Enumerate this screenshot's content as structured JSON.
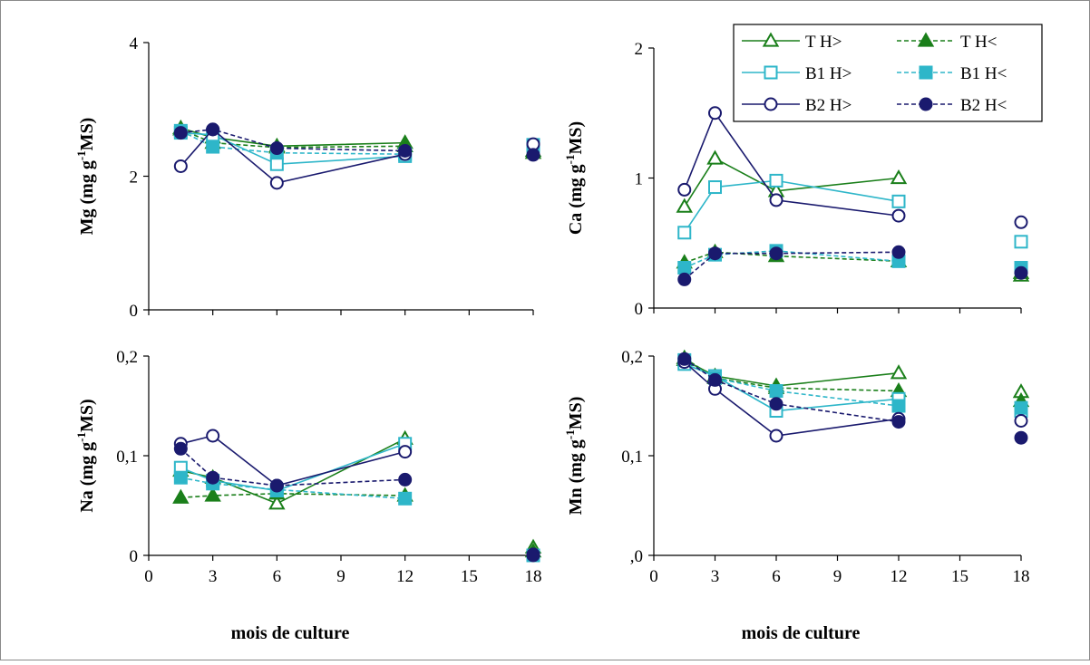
{
  "x_label": "mois de culture",
  "legend_labels": [
    "T H>",
    "T H<",
    "B1 H>",
    "B1 H<",
    "B2 H>",
    "B2 H<"
  ],
  "series_styles": [
    {
      "name": "T H>",
      "color": "#1a7f1a",
      "dashed": false,
      "marker": "triangle",
      "filled": false
    },
    {
      "name": "T H<",
      "color": "#1a7f1a",
      "dashed": true,
      "marker": "triangle",
      "filled": true
    },
    {
      "name": "B1 H>",
      "color": "#2eb6c9",
      "dashed": false,
      "marker": "square",
      "filled": false
    },
    {
      "name": "B1 H<",
      "color": "#2eb6c9",
      "dashed": true,
      "marker": "square",
      "filled": true
    },
    {
      "name": "B2 H>",
      "color": "#1a1a6e",
      "dashed": false,
      "marker": "circle",
      "filled": false
    },
    {
      "name": "B2 H<",
      "color": "#1a1a6e",
      "dashed": true,
      "marker": "circle",
      "filled": true
    }
  ],
  "chart_data": [
    {
      "type": "line",
      "ylabel": "Mg (mg g-1 MS)",
      "ylabel_main": "Mg (mg g",
      "ylabel_sup": "-1",
      "ylabel_end": "MS)",
      "xlabel": "",
      "xlim": [
        0,
        18
      ],
      "ylim": [
        0,
        4
      ],
      "x_ticks": [
        0,
        3,
        6,
        9,
        12,
        15,
        18
      ],
      "x_tick_labels": [],
      "y_ticks": [
        0,
        2,
        4
      ],
      "y_tick_labels": [
        "0",
        "2",
        "4"
      ],
      "series": [
        {
          "name": "T H>",
          "x": [
            1.5,
            3,
            6,
            12
          ],
          "values": [
            2.72,
            2.58,
            2.45,
            2.5
          ],
          "extra": {
            "x": 18,
            "y": 2.38
          }
        },
        {
          "name": "T H<",
          "x": [
            1.5,
            3,
            6,
            12
          ],
          "values": [
            2.7,
            2.5,
            2.43,
            2.45
          ],
          "extra": {
            "x": 18,
            "y": 2.35
          }
        },
        {
          "name": "B1 H>",
          "x": [
            1.5,
            3,
            6,
            12
          ],
          "values": [
            2.65,
            2.62,
            2.18,
            2.3
          ],
          "extra": {
            "x": 18,
            "y": 2.47
          }
        },
        {
          "name": "B1 H<",
          "x": [
            1.5,
            3,
            6,
            12
          ],
          "values": [
            2.68,
            2.44,
            2.35,
            2.33
          ],
          "extra": {
            "x": 18,
            "y": 2.45
          }
        },
        {
          "name": "B2 H>",
          "x": [
            1.5,
            3,
            6,
            12
          ],
          "values": [
            2.15,
            2.7,
            1.9,
            2.33
          ],
          "extra": {
            "x": 18,
            "y": 2.48
          }
        },
        {
          "name": "B2 H<",
          "x": [
            1.5,
            3,
            6,
            12
          ],
          "values": [
            2.65,
            2.7,
            2.42,
            2.38
          ],
          "extra": {
            "x": 18,
            "y": 2.32
          }
        }
      ]
    },
    {
      "type": "line",
      "ylabel": "Ca (mg g-1 MS)",
      "ylabel_main": "Ca (mg g",
      "ylabel_sup": "-1",
      "ylabel_end": "MS)",
      "xlabel": "",
      "xlim": [
        0,
        18
      ],
      "ylim": [
        0,
        2
      ],
      "x_ticks": [
        0,
        3,
        6,
        9,
        12,
        15,
        18
      ],
      "x_tick_labels": [],
      "y_ticks": [
        0,
        1,
        2
      ],
      "y_tick_labels": [
        "0",
        "1",
        "2"
      ],
      "series": [
        {
          "name": "T H>",
          "x": [
            1.5,
            3,
            6,
            12
          ],
          "values": [
            0.78,
            1.15,
            0.9,
            1.0
          ],
          "extra": {
            "x": 18,
            "y": 0.25
          }
        },
        {
          "name": "T H<",
          "x": [
            1.5,
            3,
            6,
            12
          ],
          "values": [
            0.35,
            0.43,
            0.4,
            0.36
          ],
          "extra": {
            "x": 18,
            "y": 0.27
          }
        },
        {
          "name": "B1 H>",
          "x": [
            1.5,
            3,
            6,
            12
          ],
          "values": [
            0.58,
            0.93,
            0.98,
            0.82
          ],
          "extra": {
            "x": 18,
            "y": 0.51
          }
        },
        {
          "name": "B1 H<",
          "x": [
            1.5,
            3,
            6,
            12
          ],
          "values": [
            0.31,
            0.41,
            0.44,
            0.36
          ],
          "extra": {
            "x": 18,
            "y": 0.31
          }
        },
        {
          "name": "B2 H>",
          "x": [
            1.5,
            3,
            6,
            12
          ],
          "values": [
            0.91,
            1.5,
            0.83,
            0.71
          ],
          "extra": {
            "x": 18,
            "y": 0.66
          }
        },
        {
          "name": "B2 H<",
          "x": [
            1.5,
            3,
            6,
            12
          ],
          "values": [
            0.22,
            0.42,
            0.42,
            0.43
          ],
          "extra": {
            "x": 18,
            "y": 0.27
          }
        }
      ]
    },
    {
      "type": "line",
      "ylabel": "Na (mg g-1 MS)",
      "ylabel_main": "Na (mg g",
      "ylabel_sup": "-1",
      "ylabel_end": "MS)",
      "xlabel": "mois de culture",
      "xlim": [
        0,
        18
      ],
      "ylim": [
        0,
        0.2
      ],
      "x_ticks": [
        0,
        3,
        6,
        9,
        12,
        15,
        18
      ],
      "x_tick_labels": [
        "0",
        "3",
        "6",
        "9",
        "12",
        "15",
        "18"
      ],
      "y_ticks": [
        0,
        0.1,
        0.2
      ],
      "y_tick_labels": [
        "0",
        "0,1",
        "0,2"
      ],
      "series": [
        {
          "name": "T H>",
          "x": [
            1.5,
            3,
            6,
            12
          ],
          "values": [
            0.085,
            0.078,
            0.052,
            0.117
          ],
          "extra": {
            "x": 18,
            "y": 0.008
          }
        },
        {
          "name": "T H<",
          "x": [
            1.5,
            3,
            6,
            12
          ],
          "values": [
            0.058,
            0.06,
            0.062,
            0.06
          ],
          "extra": {
            "x": 18,
            "y": 0.004
          }
        },
        {
          "name": "B1 H>",
          "x": [
            1.5,
            3,
            6,
            12
          ],
          "values": [
            0.088,
            0.075,
            0.065,
            0.112
          ],
          "extra": {
            "x": 18,
            "y": 0.0
          }
        },
        {
          "name": "B1 H<",
          "x": [
            1.5,
            3,
            6,
            12
          ],
          "values": [
            0.078,
            0.072,
            0.066,
            0.057
          ],
          "extra": {
            "x": 18,
            "y": 0.0
          }
        },
        {
          "name": "B2 H>",
          "x": [
            1.5,
            3,
            6,
            12
          ],
          "values": [
            0.112,
            0.12,
            0.07,
            0.104
          ],
          "extra": {
            "x": 18,
            "y": 0.001
          }
        },
        {
          "name": "B2 H<",
          "x": [
            1.5,
            3,
            6,
            12
          ],
          "values": [
            0.107,
            0.078,
            0.07,
            0.076
          ],
          "extra": {
            "x": 18,
            "y": 0.0
          }
        }
      ]
    },
    {
      "type": "line",
      "ylabel": "Mn (mg g-1 MS)",
      "ylabel_main": "Mn (mg g",
      "ylabel_sup": "-1",
      "ylabel_end": "MS)",
      "xlabel": "mois de culture",
      "xlim": [
        0,
        18
      ],
      "ylim": [
        0,
        0.2
      ],
      "x_ticks": [
        0,
        3,
        6,
        9,
        12,
        15,
        18
      ],
      "x_tick_labels": [
        "0",
        "3",
        "6",
        "9",
        "12",
        "15",
        "18"
      ],
      "y_ticks": [
        0,
        0.1,
        0.2
      ],
      "y_tick_labels": [
        ",0",
        "0,1",
        "0,2"
      ],
      "series": [
        {
          "name": "T H>",
          "x": [
            1.5,
            3,
            6,
            12
          ],
          "values": [
            0.196,
            0.18,
            0.17,
            0.183
          ],
          "extra": {
            "x": 18,
            "y": 0.164
          }
        },
        {
          "name": "T H<",
          "x": [
            1.5,
            3,
            6,
            12
          ],
          "values": [
            0.198,
            0.178,
            0.168,
            0.165
          ],
          "extra": {
            "x": 18,
            "y": 0.155
          }
        },
        {
          "name": "B1 H>",
          "x": [
            1.5,
            3,
            6,
            12
          ],
          "values": [
            0.192,
            0.18,
            0.145,
            0.157
          ],
          "extra": {
            "x": 18,
            "y": 0.145
          }
        },
        {
          "name": "B1 H<",
          "x": [
            1.5,
            3,
            6,
            12
          ],
          "values": [
            0.196,
            0.178,
            0.165,
            0.15
          ],
          "extra": {
            "x": 18,
            "y": 0.148
          }
        },
        {
          "name": "B2 H>",
          "x": [
            1.5,
            3,
            6,
            12
          ],
          "values": [
            0.194,
            0.167,
            0.12,
            0.137
          ],
          "extra": {
            "x": 18,
            "y": 0.135
          }
        },
        {
          "name": "B2 H<",
          "x": [
            1.5,
            3,
            6,
            12
          ],
          "values": [
            0.197,
            0.176,
            0.152,
            0.134
          ],
          "extra": {
            "x": 18,
            "y": 0.118
          }
        }
      ]
    }
  ]
}
